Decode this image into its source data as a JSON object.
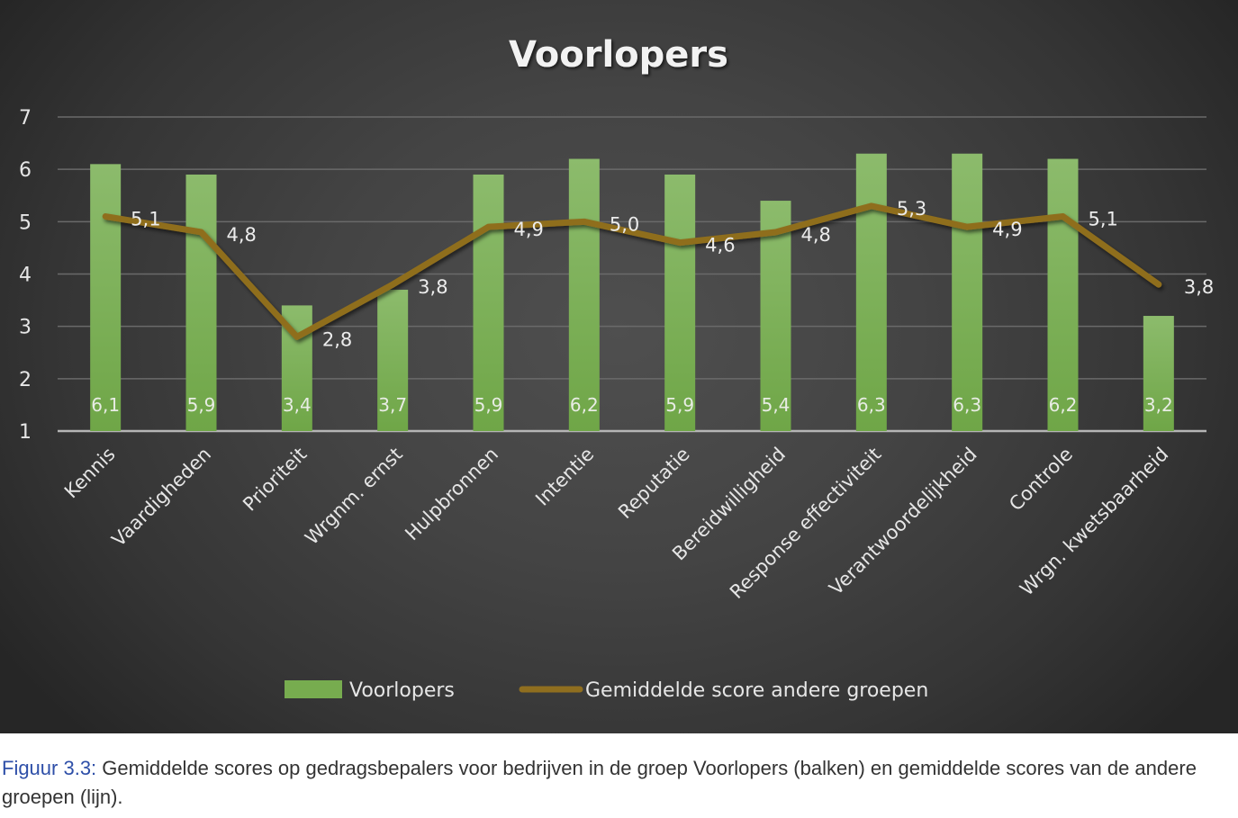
{
  "chart_data": {
    "type": "bar",
    "title": "Voorlopers",
    "xlabel": "",
    "ylabel": "",
    "ylim": [
      1,
      7
    ],
    "yticks": [
      1,
      2,
      3,
      4,
      5,
      6,
      7
    ],
    "grid": true,
    "legend_position": "bottom",
    "categories": [
      "Kennis",
      "Vaardigheden",
      "Prioriteit",
      "Wrgnm. ernst",
      "Hulpbronnen",
      "Intentie",
      "Reputatie",
      "Bereidwilligheid",
      "Response effectiviteit",
      "Verantwoordelijkheid",
      "Controle",
      "Wrgn. kwetsbaarheid"
    ],
    "series": [
      {
        "name": "Voorlopers",
        "type": "bar",
        "color": "#77ac4f",
        "values": [
          6.1,
          5.9,
          3.4,
          3.7,
          5.9,
          6.2,
          5.9,
          5.4,
          6.3,
          6.3,
          6.2,
          3.2
        ],
        "labels": [
          "6,1",
          "5,9",
          "3,4",
          "3,7",
          "5,9",
          "6,2",
          "5,9",
          "5,4",
          "6,3",
          "6,3",
          "6,2",
          "3,2"
        ]
      },
      {
        "name": "Gemiddelde score andere groepen",
        "type": "line",
        "color": "#8f6e1f",
        "values": [
          5.1,
          4.8,
          2.8,
          3.8,
          4.9,
          5.0,
          4.6,
          4.8,
          5.3,
          4.9,
          5.1,
          3.8
        ],
        "labels": [
          "5,1",
          "4,8",
          "2,8",
          "3,8",
          "4,9",
          "5,0",
          "4,6",
          "4,8",
          "5,3",
          "4,9",
          "5,1",
          "3,8"
        ]
      }
    ]
  },
  "caption": {
    "label": "Figuur 3.3:",
    "text": " Gemiddelde scores op gedragsbepalers voor bedrijven in de groep Voorlopers (balken) en gemiddelde scores van de andere groepen (lijn)."
  }
}
